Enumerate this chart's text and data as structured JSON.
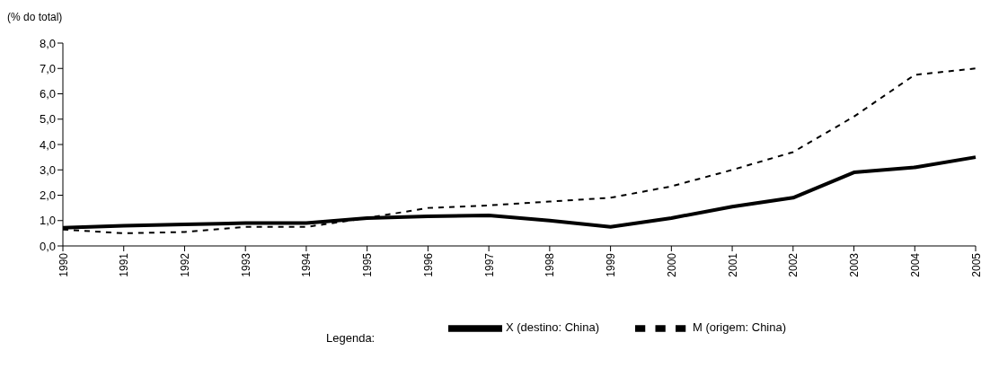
{
  "chart_data": {
    "type": "line",
    "ylabel": "(% do total)",
    "legend_title": "Legenda:",
    "categories": [
      "1990",
      "1991",
      "1992",
      "1993",
      "1994",
      "1995",
      "1996",
      "1997",
      "1998",
      "1999",
      "2000",
      "2001",
      "2002",
      "2003",
      "2004",
      "2005"
    ],
    "series": [
      {
        "name": "X (destino: China)",
        "color": "#000000",
        "line_style": "solid",
        "values": [
          0.72,
          0.8,
          0.85,
          0.9,
          0.9,
          1.1,
          1.17,
          1.2,
          1.0,
          0.75,
          1.1,
          1.55,
          1.9,
          2.9,
          3.1,
          3.5
        ]
      },
      {
        "name": "M (origem: China)",
        "color": "#000000",
        "line_style": "dashed",
        "values": [
          0.65,
          0.5,
          0.55,
          0.75,
          0.75,
          1.1,
          1.5,
          1.6,
          1.75,
          1.9,
          2.35,
          3.0,
          3.7,
          5.1,
          6.75,
          7.0
        ]
      }
    ],
    "ylim": [
      0,
      8
    ],
    "yticks": [
      {
        "value": 0,
        "label": "0,0"
      },
      {
        "value": 1,
        "label": "1,0"
      },
      {
        "value": 2,
        "label": "2,0"
      },
      {
        "value": 3,
        "label": "3,0"
      },
      {
        "value": 4,
        "label": "4,0"
      },
      {
        "value": 5,
        "label": "5,0"
      },
      {
        "value": 6,
        "label": "6,0"
      },
      {
        "value": 7,
        "label": "7,0"
      },
      {
        "value": 8,
        "label": "8,0"
      }
    ],
    "grid": false,
    "legend": "bottom",
    "marker": "none"
  }
}
